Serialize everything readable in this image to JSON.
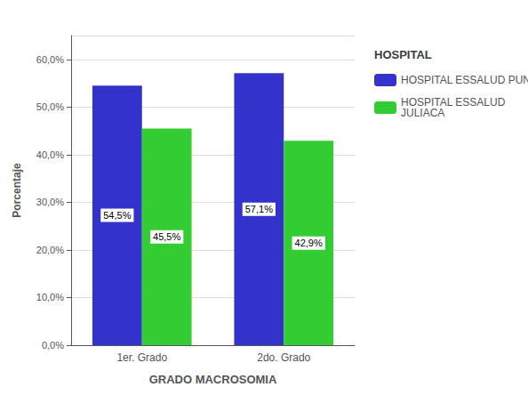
{
  "chart_data": {
    "type": "bar",
    "categories": [
      "1er. Grado",
      "2do. Grado"
    ],
    "series": [
      {
        "name": "HOSPITAL ESSALUD PUNO",
        "color": "#3333CC",
        "values": [
          54.5,
          57.1
        ],
        "value_labels": [
          "54,5%",
          "57,1%"
        ]
      },
      {
        "name": "HOSPITAL ESSALUD\nJULIACA",
        "color": "#33CC33",
        "values": [
          45.5,
          42.9
        ],
        "value_labels": [
          "45,5%",
          "42,9%"
        ]
      }
    ],
    "xlabel": "GRADO MACROSOMIA",
    "ylabel": "Porcentaje",
    "legend_title": "HOSPITAL",
    "ylim": [
      0,
      65
    ],
    "yticks": [
      {
        "value": 0,
        "label": "0,0%"
      },
      {
        "value": 10,
        "label": "10,0%"
      },
      {
        "value": 20,
        "label": "20,0%"
      },
      {
        "value": 30,
        "label": "30,0%"
      },
      {
        "value": 40,
        "label": "40,0%"
      },
      {
        "value": 50,
        "label": "50,0%"
      },
      {
        "value": 60,
        "label": "60,0%"
      }
    ],
    "grid": true,
    "legend": "right",
    "data_labels": true
  }
}
